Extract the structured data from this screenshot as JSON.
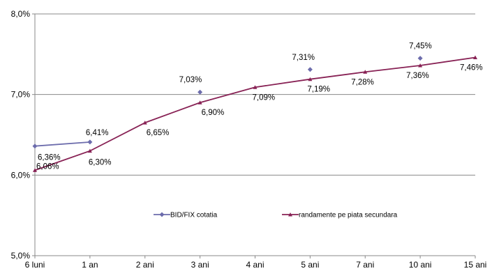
{
  "chart_data": {
    "type": "line",
    "categories": [
      "6 luni",
      "1 an",
      "2 ani",
      "3 ani",
      "4 ani",
      "5 ani",
      "7 ani",
      "10 ani",
      "15 ani"
    ],
    "ylim": [
      5.0,
      8.0
    ],
    "yticks": [
      5.0,
      6.0,
      7.0,
      8.0
    ],
    "ytick_labels": [
      "5,0%",
      "6,0%",
      "7,0%",
      "8,0%"
    ],
    "grid": true,
    "legend_position": "inside-lower-center",
    "series": [
      {
        "name": "BID/FIX cotatia",
        "color": "#6c6cac",
        "marker": "diamond",
        "values": [
          6.36,
          6.41,
          null,
          7.03,
          null,
          7.31,
          null,
          7.45,
          null
        ],
        "labels": [
          "6,36%",
          "6,41%",
          null,
          "7,03%",
          null,
          "7,31%",
          null,
          "7,45%",
          null
        ]
      },
      {
        "name": "randamente pe piata secundara",
        "color": "#882255",
        "marker": "triangle",
        "values": [
          6.06,
          6.3,
          6.65,
          6.9,
          7.09,
          7.19,
          7.28,
          7.36,
          7.46
        ],
        "labels": [
          "6,06%",
          "6,30%",
          "6,65%",
          "6,90%",
          "7,09%",
          "7,19%",
          "7,28%",
          "7,36%",
          "7,46%"
        ]
      }
    ]
  }
}
